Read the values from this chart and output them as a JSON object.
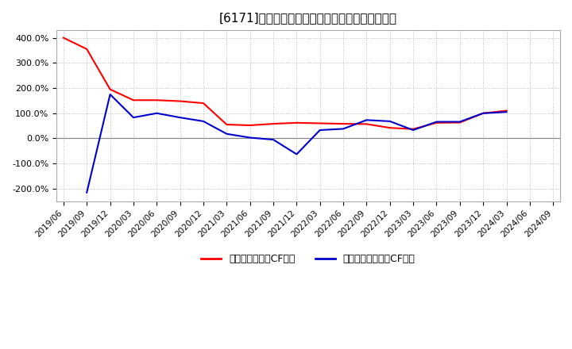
{
  "title": "[6171]　有利子負債キャッシュフロー比率の推移",
  "legend_red": "有利子負債営業CF比率",
  "legend_blue": "有利子負債フリーCF比率",
  "x_labels": [
    "2019/06",
    "2019/09",
    "2019/12",
    "2020/03",
    "2020/06",
    "2020/09",
    "2020/12",
    "2021/03",
    "2021/06",
    "2021/09",
    "2021/12",
    "2022/03",
    "2022/06",
    "2022/09",
    "2022/12",
    "2023/03",
    "2023/06",
    "2023/09",
    "2023/12",
    "2024/03",
    "2024/06",
    "2024/09"
  ],
  "red_values": [
    400.0,
    355.0,
    195.0,
    152.0,
    152.0,
    148.0,
    140.0,
    55.0,
    52.0,
    58.0,
    62.0,
    60.0,
    58.0,
    57.0,
    42.0,
    37.0,
    62.0,
    63.0,
    100.0,
    110.0,
    null,
    null
  ],
  "blue_values": [
    null,
    -215.0,
    175.0,
    83.0,
    100.0,
    83.0,
    68.0,
    18.0,
    3.0,
    -5.0,
    -63.0,
    33.0,
    38.0,
    73.0,
    68.0,
    33.0,
    66.0,
    66.0,
    100.0,
    105.0,
    null,
    null
  ],
  "ylim": [
    -250.0,
    430.0
  ],
  "yticks": [
    -200.0,
    -100.0,
    0.0,
    100.0,
    200.0,
    300.0,
    400.0
  ],
  "bg_color": "#ffffff",
  "plot_bg_color": "#ffffff",
  "grid_color": "#bbbbbb",
  "red_color": "#ff0000",
  "blue_color": "#0000cc",
  "zero_line_color": "#888888",
  "spine_color": "#aaaaaa"
}
